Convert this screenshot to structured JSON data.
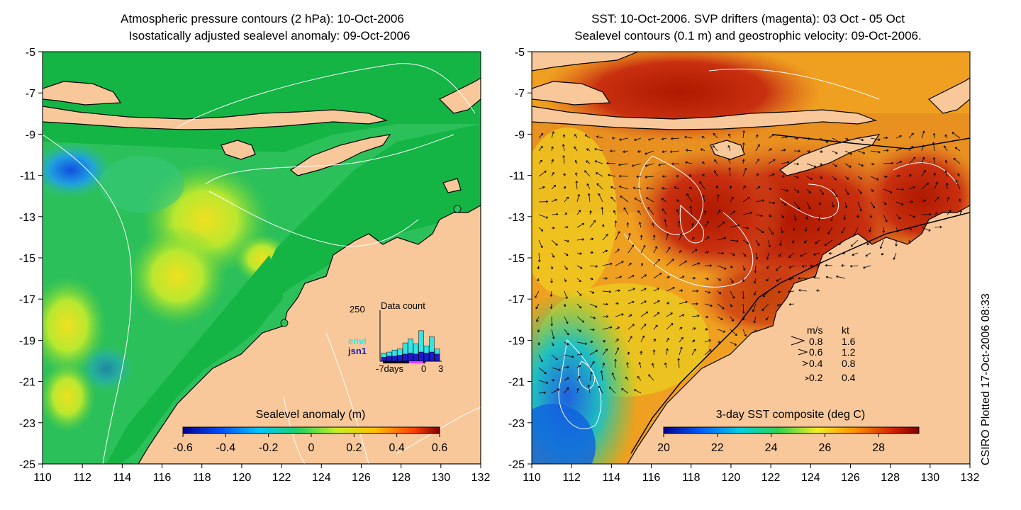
{
  "left_panel": {
    "title_line1": "Atmospheric pressure contours (2 hPa): 10-Oct-2006",
    "title_line2": "Isostatically adjusted sealevel anomaly: 09-Oct-2006",
    "colorbar_label": "Sealevel anomaly (m)",
    "colorbar_ticks": [
      "-0.6",
      "-0.4",
      "-0.2",
      "0",
      "0.2",
      "0.4",
      "0.6"
    ],
    "colorbar_range": [
      -0.6,
      0.6
    ],
    "inset": {
      "title": "Data count",
      "y_max_label": "250",
      "x_labels": [
        "-7days",
        "0",
        "3"
      ],
      "legend": [
        {
          "label": "envi",
          "color": "#33e5e5"
        },
        {
          "label": "jsn1",
          "color": "#1a1acc"
        }
      ],
      "counts_total": [
        40,
        45,
        55,
        60,
        90,
        110,
        85,
        150,
        75,
        120,
        60
      ],
      "counts_jsn1": [
        20,
        25,
        25,
        30,
        35,
        40,
        35,
        45,
        40,
        45,
        35
      ]
    }
  },
  "right_panel": {
    "title_line1": "SST: 10-Oct-2006. SVP drifters (magenta): 03 Oct - 05 Oct",
    "title_line2": "Sealevel contours (0.1 m) and geostrophic velocity: 09-Oct-2006.",
    "colorbar_label": "3-day SST composite (deg C)",
    "colorbar_ticks": [
      "20",
      "22",
      "24",
      "26",
      "28"
    ],
    "colorbar_range": [
      20,
      29.5
    ],
    "velocity_legend": {
      "header_ms": "m/s",
      "header_kt": "kt",
      "rows": [
        {
          "ms": "0.8",
          "kt": "1.6"
        },
        {
          "ms": "0.6",
          "kt": "1.2"
        },
        {
          "ms": "0.4",
          "kt": "0.8"
        },
        {
          "ms": "0.2",
          "kt": "0.4"
        }
      ]
    }
  },
  "axes": {
    "x_ticks": [
      "110",
      "112",
      "114",
      "116",
      "118",
      "120",
      "122",
      "124",
      "126",
      "128",
      "130",
      "132"
    ],
    "y_ticks": [
      "-5",
      "-7",
      "-9",
      "-11",
      "-13",
      "-15",
      "-17",
      "-19",
      "-21",
      "-23",
      "-25"
    ],
    "lon_range": [
      110,
      132
    ],
    "lat_range": [
      -25,
      -5
    ]
  },
  "credit": "CSIRO Plotted 17-Oct-2006 08:33",
  "colors": {
    "land": "#f9c89a",
    "ocean_green": "#1cb84a",
    "coast": "#000000",
    "contour": "#ffffff"
  }
}
